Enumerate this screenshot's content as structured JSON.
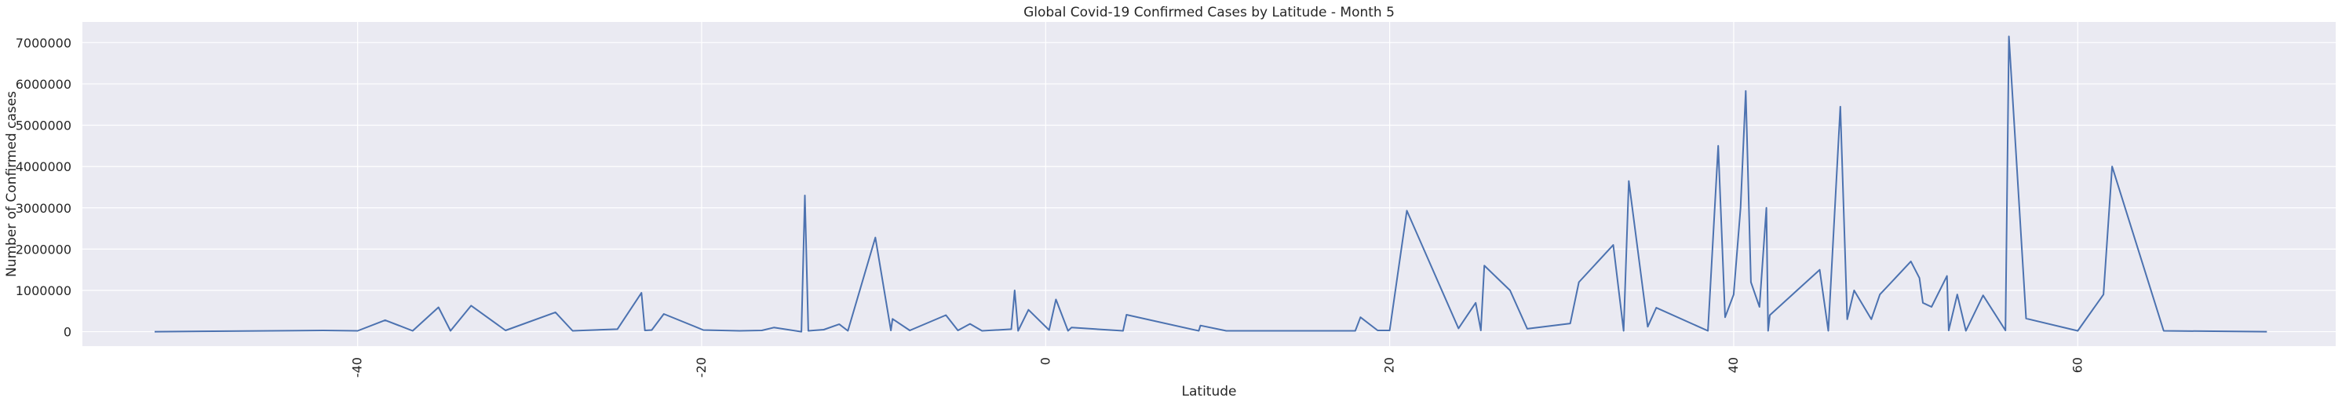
{
  "chart_data": {
    "type": "line",
    "title": "Global Covid-19 Confirmed Cases by Latitude - Month 5",
    "xlabel": "Latitude",
    "ylabel": "Number of Confirmed cases",
    "xlim": [
      -56,
      75
    ],
    "ylim": [
      -350000,
      7500000
    ],
    "x_ticks": [
      -40,
      -20,
      0,
      20,
      40,
      60
    ],
    "y_ticks": [
      0,
      1000000,
      2000000,
      3000000,
      4000000,
      5000000,
      6000000,
      7000000
    ],
    "x_tick_labels": [
      "-40",
      "-20",
      "0",
      "20",
      "40",
      "60"
    ],
    "y_tick_labels": [
      "0",
      "1000000",
      "2000000",
      "3000000",
      "4000000",
      "5000000",
      "6000000",
      "7000000"
    ],
    "x_tick_rotation": 90,
    "grid": true,
    "colors": {
      "line": "#4c72b0",
      "plot_bg": "#eaeaf2",
      "grid": "#ffffff"
    },
    "series": [
      {
        "x": [
          -51.8,
          -42,
          -40,
          -38.4,
          -36.8,
          -35.3,
          -34.6,
          -33.4,
          -31.4,
          -28.5,
          -27.5,
          -24.9,
          -23.5,
          -23.3,
          -22.9,
          -22.2,
          -19.9,
          -17.8,
          -16.5,
          -15.8,
          -14.2,
          -14.0,
          -13.8,
          -12.9,
          -12.0,
          -11.5,
          -9.9,
          -9.0,
          -8.9,
          -7.9,
          -5.8,
          -5.1,
          -4.4,
          -3.7,
          -2.0,
          -1.8,
          -1.6,
          -1.0,
          0.2,
          0.6,
          1.3,
          1.5,
          4.5,
          4.7,
          8.9,
          9.0,
          10.5,
          13.0,
          18.0,
          18.3,
          19.3,
          20.0,
          21.0,
          24.0,
          25.0,
          25.3,
          25.5,
          27.0,
          28.0,
          30.5,
          31.0,
          33.0,
          33.6,
          33.9,
          35.0,
          35.5,
          38.5,
          39.1,
          39.5,
          40.0,
          40.4,
          40.7,
          41.0,
          41.5,
          41.9,
          42.0,
          42.1,
          45.0,
          45.5,
          46.2,
          46.6,
          47.0,
          48.0,
          48.5,
          50.3,
          50.8,
          51.0,
          51.5,
          52.4,
          52.5,
          53.0,
          53.5,
          54.5,
          55.8,
          56.0,
          57.0,
          60.0,
          61.5,
          62.0,
          65.0,
          71.0
        ],
        "y": [
          0,
          30000,
          20000,
          280000,
          20000,
          590000,
          20000,
          630000,
          30000,
          470000,
          20000,
          60000,
          940000,
          30000,
          40000,
          430000,
          40000,
          20000,
          30000,
          100000,
          0,
          3300000,
          20000,
          50000,
          180000,
          20000,
          2280000,
          30000,
          310000,
          30000,
          400000,
          30000,
          190000,
          20000,
          60000,
          1000000,
          20000,
          530000,
          40000,
          780000,
          20000,
          100000,
          20000,
          410000,
          20000,
          150000,
          20000,
          20000,
          20000,
          350000,
          30000,
          30000,
          2930000,
          80000,
          700000,
          30000,
          1600000,
          1000000,
          70000,
          200000,
          1200000,
          2100000,
          20000,
          3650000,
          120000,
          580000,
          20000,
          4500000,
          350000,
          900000,
          3000000,
          5830000,
          1200000,
          600000,
          3000000,
          20000,
          400000,
          1500000,
          20000,
          5450000,
          300000,
          1000000,
          300000,
          900000,
          1700000,
          1300000,
          700000,
          600000,
          1350000,
          30000,
          900000,
          20000,
          880000,
          30000,
          7150000,
          320000,
          20000,
          900000,
          4000000,
          20000,
          0
        ]
      }
    ]
  }
}
